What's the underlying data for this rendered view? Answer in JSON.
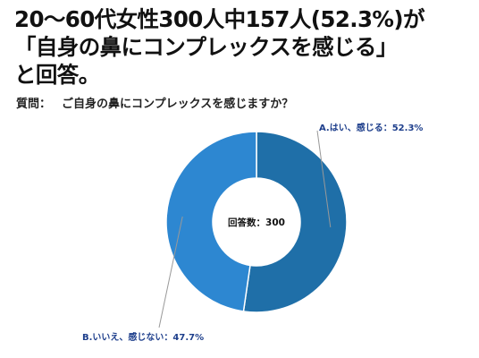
{
  "headline": {
    "line1": "20〜60代女性300人中157人(52.3%)が",
    "line2": "「自身の鼻にコンプレックスを感じる」",
    "line3": "と回答。"
  },
  "question": {
    "label": "質問：",
    "text": "ご自身の鼻にコンプレックスを感じますか？"
  },
  "chart_data": {
    "type": "pie",
    "donut": true,
    "center_label": "回答数：300",
    "slices": [
      {
        "label": "A.はい、感じる：52.3%",
        "category": "はい、感じる",
        "value": 52.3,
        "color": "#1f6fa8"
      },
      {
        "label": "B.いいえ、感じない：47.7%",
        "category": "いいえ、感じない",
        "value": 47.7,
        "color": "#2d87d1"
      }
    ],
    "label_color": "#1e3f8c",
    "leader_color": "#999999"
  }
}
